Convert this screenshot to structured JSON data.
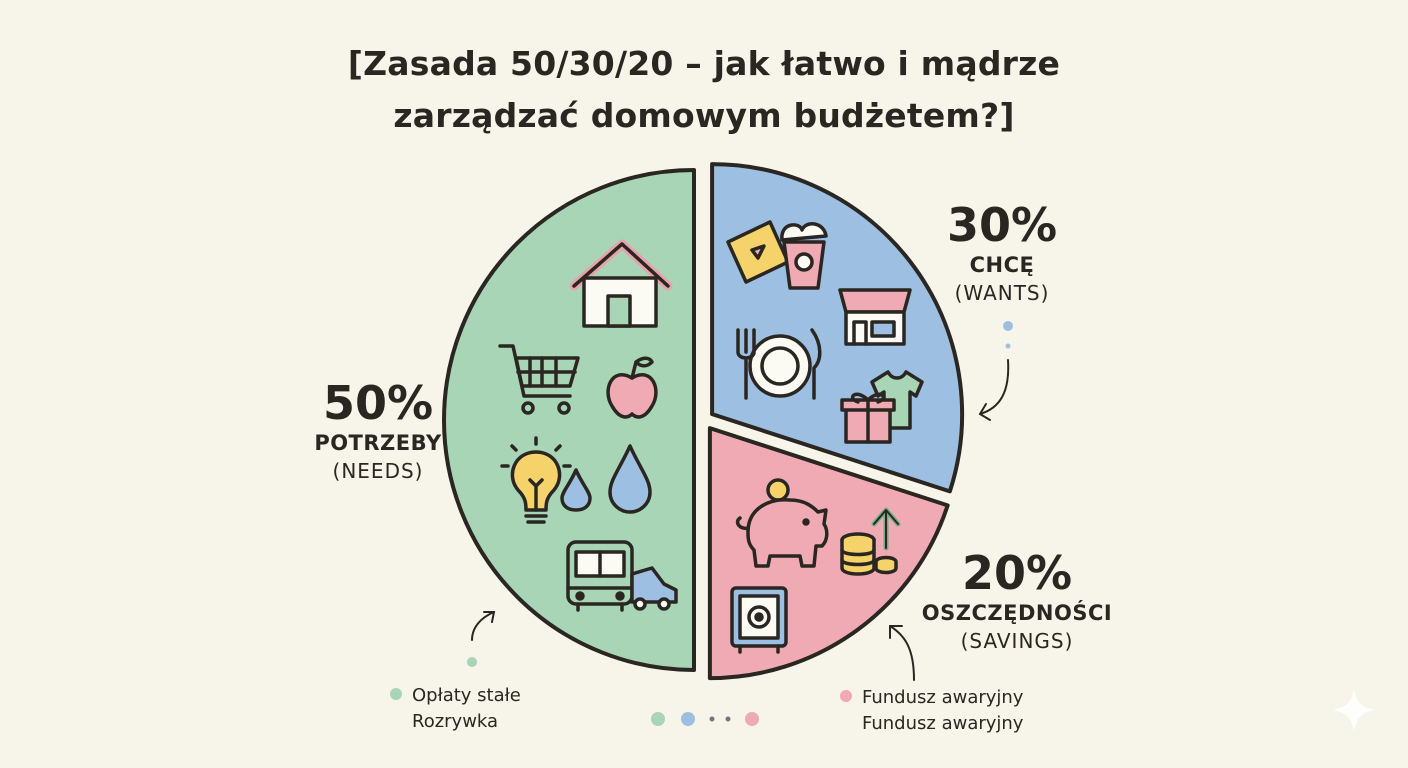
{
  "title_line1": "[Zasada 50/30/20 – jak łatwo i mądrze",
  "title_line2": "zarządzać domowym budżetem?]",
  "chart_data": {
    "type": "pie",
    "slices": [
      {
        "label": "POTRZEBY",
        "sublabel": "(NEEDS)",
        "value": 50,
        "value_label": "50%",
        "color": "#a8d5b5"
      },
      {
        "label": "CHCĘ",
        "sublabel": "(WANTS)",
        "value": 30,
        "value_label": "30%",
        "color": "#9dbfe1"
      },
      {
        "label": "OSZCZĘDNOŚCI",
        "sublabel": "(SAVINGS)",
        "value": 20,
        "value_label": "20%",
        "color": "#f0aab4"
      }
    ],
    "legend": {
      "left": {
        "color": "#a8d5b5",
        "lines": [
          "Opłaty stałe",
          "Rozrywka"
        ]
      },
      "right": {
        "color": "#f0aab4",
        "lines": [
          "Fundusz awaryjny",
          "Fundusz awaryjny"
        ]
      }
    },
    "pager_dots": [
      "#a8d5b5",
      "#9dbfe1",
      "#777777",
      "#777777",
      "#f0aab4"
    ],
    "icons": {
      "needs": [
        "house-icon",
        "shopping-cart-icon",
        "apple-icon",
        "lightbulb-icon",
        "water-drop-icon",
        "bus-icon",
        "car-icon"
      ],
      "wants": [
        "cinema-ticket-icon",
        "popcorn-icon",
        "shop-icon",
        "dinner-plate-icon",
        "tshirt-icon",
        "gift-icon"
      ],
      "savings": [
        "piggy-bank-icon",
        "coin-stack-icon",
        "arrow-up-icon",
        "safe-icon"
      ]
    }
  }
}
